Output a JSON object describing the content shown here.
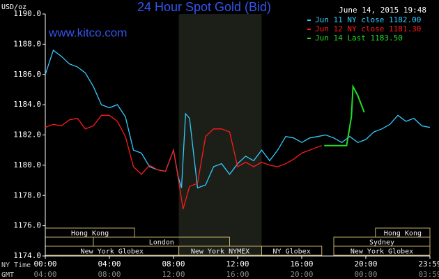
{
  "chart_data": {
    "type": "line",
    "title": "24 Hour Spot Gold (Bid)",
    "watermark": "www.kitco.com",
    "timestamp": "June 14, 2015 19:48",
    "y_unit": "USD/oz",
    "row_labels": [
      "NY Time",
      "GMT"
    ],
    "ylim": [
      1174,
      1190
    ],
    "yticks": [
      {
        "value": 1174,
        "label": "1174.0"
      },
      {
        "value": 1176,
        "label": "1176.0"
      },
      {
        "value": 1178,
        "label": "1178.0"
      },
      {
        "value": 1180,
        "label": "1180.0"
      },
      {
        "value": 1182,
        "label": "1182.0"
      },
      {
        "value": 1184,
        "label": "1184.0"
      },
      {
        "value": 1186,
        "label": "1186.0"
      },
      {
        "value": 1188,
        "label": "1188.0"
      },
      {
        "value": 1190,
        "label": "1190.0"
      }
    ],
    "xlim": [
      0,
      24
    ],
    "xticks": [
      {
        "value": 0,
        "label": "00:00"
      },
      {
        "value": 4,
        "label": "04:00"
      },
      {
        "value": 8,
        "label": "08:00"
      },
      {
        "value": 12,
        "label": "12:00"
      },
      {
        "value": 16,
        "label": "16:00"
      },
      {
        "value": 20,
        "label": "20:00"
      },
      {
        "value": 24,
        "label": "23:59"
      }
    ],
    "gmt_labels": [
      "04:00",
      "08:00",
      "12:00",
      "16:00",
      "20:00",
      "00:00",
      "03:59"
    ],
    "highlight": [
      8.33,
      13.5
    ],
    "sessions": [
      {
        "name": "Hong Kong",
        "row": 0,
        "start": 0,
        "end": 5.57
      },
      {
        "name": "Hong Kong",
        "row": 0,
        "start": 20.6,
        "end": 24
      },
      {
        "name": "London",
        "row": 1,
        "start": 3,
        "end": 11.5
      },
      {
        "name": "Sydney",
        "row": 1,
        "start": 18,
        "end": 24
      },
      {
        "name": "New York Globex",
        "row": 2,
        "start": 0,
        "end": 8.33
      },
      {
        "name": "New York NYMEX",
        "row": 2,
        "start": 8.33,
        "end": 13.5
      },
      {
        "name": "NY Globex",
        "row": 2,
        "start": 13.5,
        "end": 17.25
      },
      {
        "name": "New York Globex",
        "row": 2,
        "start": 18,
        "end": 24
      }
    ],
    "series": [
      {
        "name": "Jun 11 NY close 1182.00",
        "color": "#33ccff",
        "x": [
          0,
          0.5,
          1,
          1.5,
          2,
          2.5,
          3,
          3.5,
          4,
          4.5,
          5,
          5.5,
          6,
          6.5,
          7,
          7.5,
          8,
          8.3,
          8.5,
          8.75,
          9,
          9.5,
          10,
          10.5,
          11,
          11.5,
          12,
          12.5,
          13,
          13.5,
          14,
          14.5,
          15,
          15.5,
          16,
          16.5,
          17,
          17.5,
          18,
          18.5,
          19,
          19.5,
          20,
          20.5,
          21,
          21.5,
          22,
          22.5,
          23,
          23.5,
          24
        ],
        "values": [
          1186.0,
          1187.6,
          1187.2,
          1186.7,
          1186.5,
          1186.1,
          1185.2,
          1184.0,
          1183.8,
          1184.0,
          1183.2,
          1181.0,
          1180.8,
          1179.9,
          1179.7,
          1179.6,
          1181.0,
          1179.2,
          1178.5,
          1183.4,
          1183.1,
          1178.5,
          1178.7,
          1179.9,
          1180.1,
          1179.4,
          1180.1,
          1180.6,
          1180.3,
          1181.0,
          1180.3,
          1181.0,
          1181.9,
          1181.8,
          1181.5,
          1181.8,
          1181.9,
          1182.0,
          1181.8,
          1181.5,
          1181.9,
          1181.5,
          1181.7,
          1182.2,
          1182.4,
          1182.7,
          1183.3,
          1182.9,
          1183.1,
          1182.6,
          1182.5
        ]
      },
      {
        "name": "Jun 12 NY close 1181.30",
        "color": "#ff1a1a",
        "x": [
          0,
          0.5,
          1,
          1.5,
          2,
          2.5,
          3,
          3.5,
          4,
          4.5,
          5,
          5.5,
          6,
          6.5,
          7,
          7.5,
          8,
          8.25,
          8.6,
          9,
          9.5,
          10,
          10.5,
          11,
          11.5,
          12,
          12.5,
          13,
          13.5,
          14,
          14.5,
          15,
          15.5,
          16,
          16.5,
          17,
          17.25
        ],
        "values": [
          1182.5,
          1182.7,
          1182.6,
          1183.0,
          1183.1,
          1182.4,
          1182.6,
          1183.3,
          1183.3,
          1182.9,
          1181.9,
          1179.9,
          1179.4,
          1180.0,
          1179.7,
          1179.6,
          1181.0,
          1179.4,
          1177.1,
          1178.6,
          1178.8,
          1181.9,
          1182.4,
          1182.4,
          1182.2,
          1179.9,
          1180.2,
          1179.9,
          1180.2,
          1180.0,
          1179.9,
          1180.1,
          1180.4,
          1180.8,
          1181.0,
          1181.2,
          1181.3
        ]
      },
      {
        "name": "Jun 14 Last 1183.50",
        "color": "#22dd22",
        "x": [
          17.4,
          18.8,
          19.1,
          19.2,
          19.5,
          19.9
        ],
        "values": [
          1181.3,
          1181.3,
          1183.2,
          1185.2,
          1184.6,
          1183.5
        ]
      }
    ]
  }
}
